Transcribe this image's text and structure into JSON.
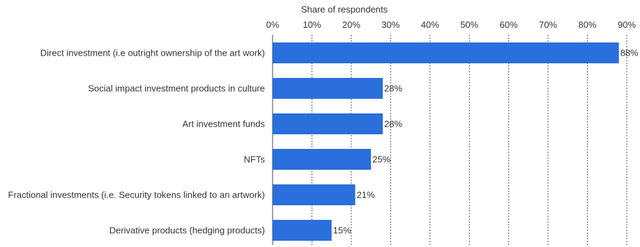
{
  "chart_data": {
    "type": "bar",
    "orientation": "horizontal",
    "xlabel": "Share of respondents",
    "xlim": [
      0,
      90
    ],
    "xticks": [
      0,
      10,
      20,
      30,
      40,
      50,
      60,
      70,
      80,
      90
    ],
    "tick_labels": [
      "0%",
      "10%",
      "20%",
      "30%",
      "40%",
      "50%",
      "60%",
      "70%",
      "80%",
      "90%"
    ],
    "axis_position": "top",
    "grid": true,
    "categories": [
      "Direct investment (i.e outright ownership of the art work)",
      "Social impact investment products in culture",
      "Art investment funds",
      "NFTs",
      "Fractional investments (i.e. Security tokens linked to an artwork)",
      "Derivative products (hedging products)"
    ],
    "values": [
      88,
      28,
      28,
      25,
      21,
      15
    ],
    "value_labels": [
      "88%",
      "28%",
      "28%",
      "25%",
      "21%",
      "15%"
    ],
    "bar_color": "#2a6fdb"
  }
}
